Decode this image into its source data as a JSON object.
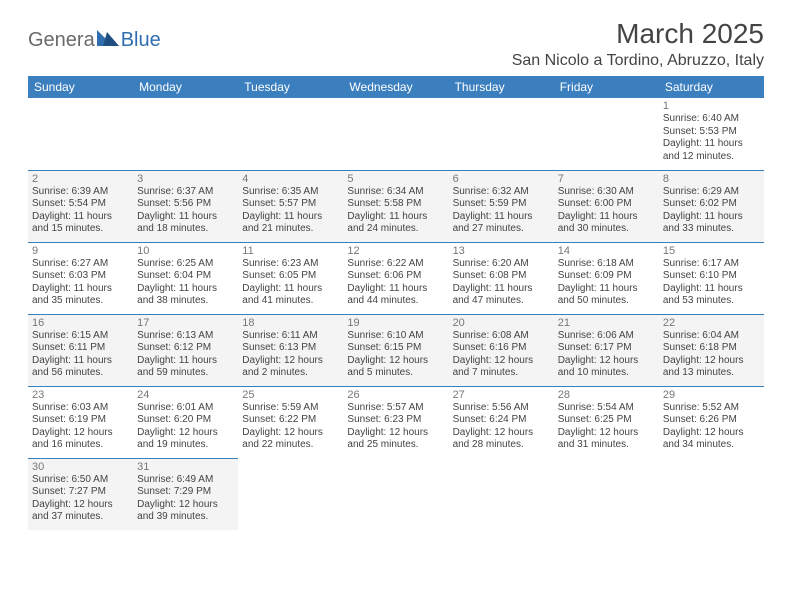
{
  "logo": {
    "text1": "Genera",
    "text2": "Blue"
  },
  "title": "March 2025",
  "location": "San Nicolo a Tordino, Abruzzo, Italy",
  "colors": {
    "header_bg": "#3b7fbf",
    "header_text": "#ffffff",
    "row_alt_bg": "#f4f4f4",
    "cell_border": "#3b7fbf",
    "logo_gray": "#6a6a6a",
    "logo_blue": "#2f6fb0"
  },
  "day_headers": [
    "Sunday",
    "Monday",
    "Tuesday",
    "Wednesday",
    "Thursday",
    "Friday",
    "Saturday"
  ],
  "weeks": [
    [
      null,
      null,
      null,
      null,
      null,
      null,
      {
        "n": "1",
        "sr": "6:40 AM",
        "ss": "5:53 PM",
        "dl": "11 hours and 12 minutes."
      }
    ],
    [
      {
        "n": "2",
        "sr": "6:39 AM",
        "ss": "5:54 PM",
        "dl": "11 hours and 15 minutes."
      },
      {
        "n": "3",
        "sr": "6:37 AM",
        "ss": "5:56 PM",
        "dl": "11 hours and 18 minutes."
      },
      {
        "n": "4",
        "sr": "6:35 AM",
        "ss": "5:57 PM",
        "dl": "11 hours and 21 minutes."
      },
      {
        "n": "5",
        "sr": "6:34 AM",
        "ss": "5:58 PM",
        "dl": "11 hours and 24 minutes."
      },
      {
        "n": "6",
        "sr": "6:32 AM",
        "ss": "5:59 PM",
        "dl": "11 hours and 27 minutes."
      },
      {
        "n": "7",
        "sr": "6:30 AM",
        "ss": "6:00 PM",
        "dl": "11 hours and 30 minutes."
      },
      {
        "n": "8",
        "sr": "6:29 AM",
        "ss": "6:02 PM",
        "dl": "11 hours and 33 minutes."
      }
    ],
    [
      {
        "n": "9",
        "sr": "6:27 AM",
        "ss": "6:03 PM",
        "dl": "11 hours and 35 minutes."
      },
      {
        "n": "10",
        "sr": "6:25 AM",
        "ss": "6:04 PM",
        "dl": "11 hours and 38 minutes."
      },
      {
        "n": "11",
        "sr": "6:23 AM",
        "ss": "6:05 PM",
        "dl": "11 hours and 41 minutes."
      },
      {
        "n": "12",
        "sr": "6:22 AM",
        "ss": "6:06 PM",
        "dl": "11 hours and 44 minutes."
      },
      {
        "n": "13",
        "sr": "6:20 AM",
        "ss": "6:08 PM",
        "dl": "11 hours and 47 minutes."
      },
      {
        "n": "14",
        "sr": "6:18 AM",
        "ss": "6:09 PM",
        "dl": "11 hours and 50 minutes."
      },
      {
        "n": "15",
        "sr": "6:17 AM",
        "ss": "6:10 PM",
        "dl": "11 hours and 53 minutes."
      }
    ],
    [
      {
        "n": "16",
        "sr": "6:15 AM",
        "ss": "6:11 PM",
        "dl": "11 hours and 56 minutes."
      },
      {
        "n": "17",
        "sr": "6:13 AM",
        "ss": "6:12 PM",
        "dl": "11 hours and 59 minutes."
      },
      {
        "n": "18",
        "sr": "6:11 AM",
        "ss": "6:13 PM",
        "dl": "12 hours and 2 minutes."
      },
      {
        "n": "19",
        "sr": "6:10 AM",
        "ss": "6:15 PM",
        "dl": "12 hours and 5 minutes."
      },
      {
        "n": "20",
        "sr": "6:08 AM",
        "ss": "6:16 PM",
        "dl": "12 hours and 7 minutes."
      },
      {
        "n": "21",
        "sr": "6:06 AM",
        "ss": "6:17 PM",
        "dl": "12 hours and 10 minutes."
      },
      {
        "n": "22",
        "sr": "6:04 AM",
        "ss": "6:18 PM",
        "dl": "12 hours and 13 minutes."
      }
    ],
    [
      {
        "n": "23",
        "sr": "6:03 AM",
        "ss": "6:19 PM",
        "dl": "12 hours and 16 minutes."
      },
      {
        "n": "24",
        "sr": "6:01 AM",
        "ss": "6:20 PM",
        "dl": "12 hours and 19 minutes."
      },
      {
        "n": "25",
        "sr": "5:59 AM",
        "ss": "6:22 PM",
        "dl": "12 hours and 22 minutes."
      },
      {
        "n": "26",
        "sr": "5:57 AM",
        "ss": "6:23 PM",
        "dl": "12 hours and 25 minutes."
      },
      {
        "n": "27",
        "sr": "5:56 AM",
        "ss": "6:24 PM",
        "dl": "12 hours and 28 minutes."
      },
      {
        "n": "28",
        "sr": "5:54 AM",
        "ss": "6:25 PM",
        "dl": "12 hours and 31 minutes."
      },
      {
        "n": "29",
        "sr": "5:52 AM",
        "ss": "6:26 PM",
        "dl": "12 hours and 34 minutes."
      }
    ],
    [
      {
        "n": "30",
        "sr": "6:50 AM",
        "ss": "7:27 PM",
        "dl": "12 hours and 37 minutes."
      },
      {
        "n": "31",
        "sr": "6:49 AM",
        "ss": "7:29 PM",
        "dl": "12 hours and 39 minutes."
      },
      null,
      null,
      null,
      null,
      null
    ]
  ],
  "labels": {
    "sunrise": "Sunrise:",
    "sunset": "Sunset:",
    "daylight": "Daylight:"
  }
}
